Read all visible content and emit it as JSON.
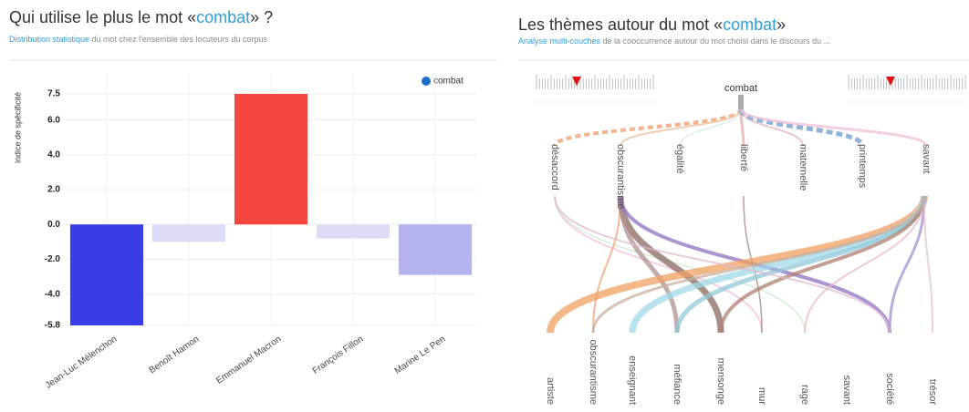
{
  "chart_data": {
    "type": "bar",
    "title": [
      "Qui utilise le plus le mot «",
      "combat",
      "» ?"
    ],
    "subtitle": [
      "Distribution statistique",
      " du mot chez l'ensemble des locuteurs du corpus"
    ],
    "y_label": "indice de spécificité",
    "categories": [
      "Jean-Luc Mélenchon",
      "Benoît Hamon",
      "Emmanuel Macron",
      "François Fillon",
      "Marine Le Pen"
    ],
    "values": [
      -5.8,
      -1.0,
      7.5,
      -0.8,
      -2.9
    ],
    "colors": [
      "#3a3de6",
      "#dcdcf7",
      "#f5473f",
      "#dcdcf7",
      "#b3b3f0"
    ],
    "legend": {
      "name": "combat",
      "color": "#1f6fc8",
      "position": "upper right"
    },
    "ylim": [
      -5.8,
      7.5
    ],
    "yticks": [
      {
        "value": 7.5,
        "label": "7.5"
      },
      {
        "value": 6,
        "label": "6.0"
      },
      {
        "value": 4,
        "label": "4.0"
      },
      {
        "value": 2,
        "label": "2.0"
      },
      {
        "value": 0,
        "label": "0.0"
      },
      {
        "value": -2,
        "label": "-2.0"
      },
      {
        "value": -4,
        "label": "-4.0"
      },
      {
        "value": -5.8,
        "label": "-5.8"
      }
    ],
    "grid": true
  },
  "diagram": {
    "title": [
      "Les thèmes autour du mot «",
      "combat",
      "»"
    ],
    "subtitle": [
      "Analyse multi-couches",
      " de la cooccurrence autour du mot choisi dans le discours du ..."
    ],
    "root": "combat",
    "level1": [
      "désaccord",
      "obscurantisme",
      "égalité",
      "liberté",
      "maternelle",
      "printemps",
      "savant"
    ],
    "level2": [
      "artiste",
      "obscurantisme",
      "enseignant",
      "méfiance",
      "mensonge",
      "mur",
      "rage",
      "savant",
      "société",
      "trésor"
    ]
  }
}
